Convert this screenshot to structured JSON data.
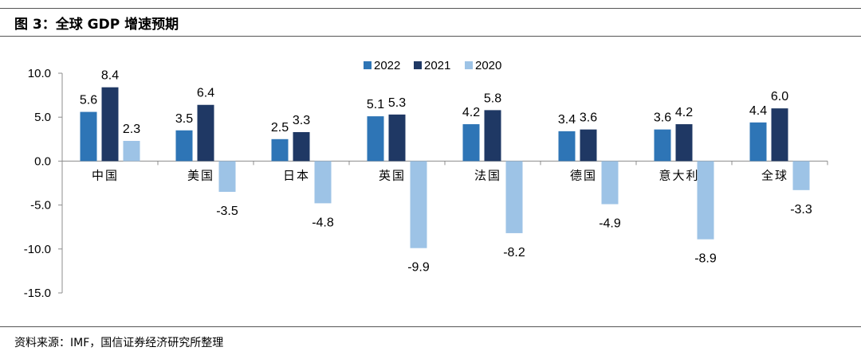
{
  "figure": {
    "title": "图 3：全球 GDP 增速预期",
    "source": "资料来源：IMF，国信证券经济研究所整理"
  },
  "colors": {
    "s2022": "#2e75b6",
    "s2021": "#1f3864",
    "s2020": "#9dc3e6",
    "axis": "#8c8c8c",
    "text": "#000000"
  },
  "chart_data": {
    "type": "bar",
    "title": "",
    "xlabel": "",
    "ylabel": "",
    "ylim": [
      -15.0,
      10.0
    ],
    "yticks": [
      10.0,
      5.0,
      0.0,
      -5.0,
      -10.0,
      -15.0
    ],
    "ytick_labels": [
      "10.0",
      "5.0",
      "0.0",
      "-5.0",
      "-10.0",
      "-15.0"
    ],
    "grid": false,
    "legend": "top-center",
    "categories": [
      "中国",
      "美国",
      "日本",
      "英国",
      "法国",
      "德国",
      "意大利",
      "全球"
    ],
    "series": [
      {
        "name": "2022",
        "color": "#2e75b6",
        "values": [
          5.6,
          3.5,
          2.5,
          5.1,
          4.2,
          3.4,
          3.6,
          4.4
        ],
        "labels": [
          "5.6",
          "3.5",
          "2.5",
          "5.1",
          "4.2",
          "3.4",
          "3.6",
          "4.4"
        ]
      },
      {
        "name": "2021",
        "color": "#1f3864",
        "values": [
          8.4,
          6.4,
          3.3,
          5.3,
          5.8,
          3.6,
          4.2,
          6.0
        ],
        "labels": [
          "8.4",
          "6.4",
          "3.3",
          "5.3",
          "5.8",
          "3.6",
          "4.2",
          "6.0"
        ]
      },
      {
        "name": "2020",
        "color": "#9dc3e6",
        "values": [
          2.3,
          -3.5,
          -4.8,
          -9.9,
          -8.2,
          -4.9,
          -8.9,
          -3.3
        ],
        "labels": [
          "2.3",
          "-3.5",
          "-4.8",
          "-9.9",
          "-8.2",
          "-4.9",
          "-8.9",
          "-3.3"
        ]
      }
    ]
  }
}
